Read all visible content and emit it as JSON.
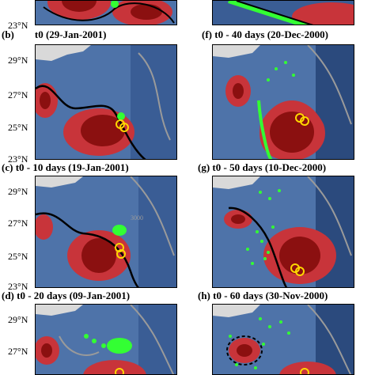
{
  "panels": [
    {
      "label": "(b)",
      "title": "t0 (29-Jan-2001)"
    },
    {
      "label": "(f)",
      "title": "t0 - 40 days (20-Dec-2000)"
    },
    {
      "label": "(c)",
      "title": "t0 - 10 days (19-Jan-2001)"
    },
    {
      "label": "(g)",
      "title": "t0 - 50 days (10-Dec-2000)"
    },
    {
      "label": "(d)",
      "title": "t0 - 20 days (09-Jan-2001)"
    },
    {
      "label": "(h)",
      "title": "t0 - 60 days (30-Nov-2000)"
    }
  ],
  "lat_labels": {
    "n29": "29°N",
    "n27": "27°N",
    "n25": "25°N",
    "n23": "23°N"
  },
  "contour_label": "3000",
  "colors": {
    "background_deep": "#2b4a7d",
    "background_mid": "#4e73a9",
    "background_light": "#8fb0d6",
    "warm_core": "#8b1010",
    "warm_mid": "#c8343a",
    "warm_light": "#e88080",
    "land": "#d9d9d9",
    "drifters": "#33ff33",
    "rings": "#ffd700",
    "bathymetry": "#9a9a9a"
  }
}
